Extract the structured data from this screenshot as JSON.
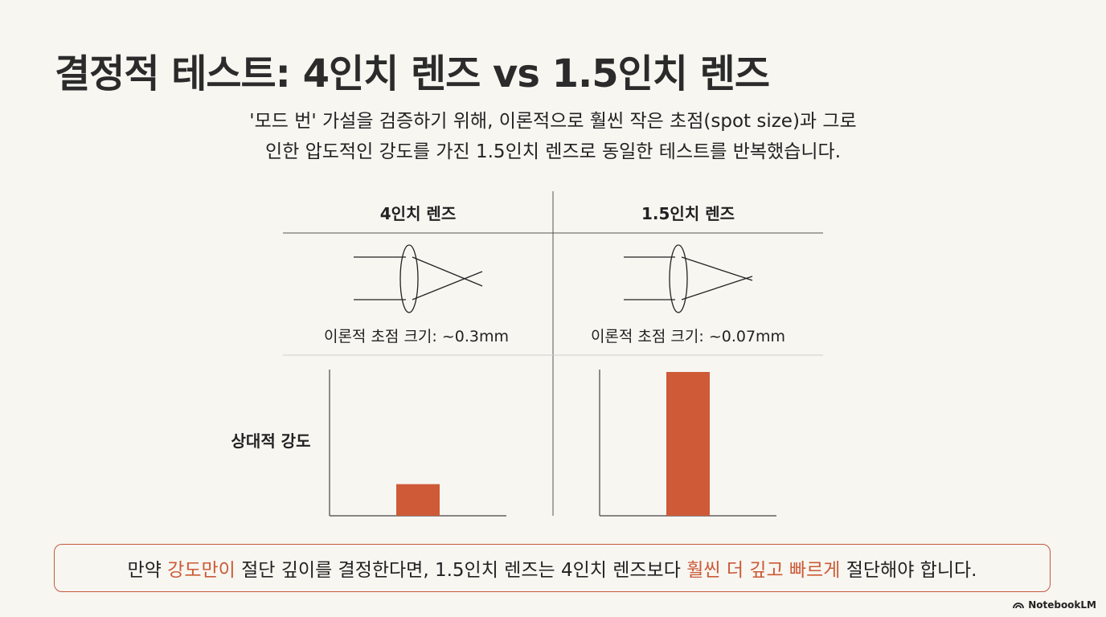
{
  "title": "결정적 테스트: 4인치 렌즈 vs 1.5인치 렌즈",
  "subtitle": {
    "line1": "'모드 번' 가설을 검증하기 위해, 이론적으로 훨씬 작은 초점(spot size)과 그로",
    "line2": "인한 압도적인 강도를 가진 1.5인치 렌즈로 동일한 테스트를 반복했습니다."
  },
  "columns": [
    {
      "header": "4인치 렌즈",
      "spot_label": "이론적 초점 크기: ~0.3mm"
    },
    {
      "header": "1.5인치 렌즈",
      "spot_label": "이론적 초점 크기: ~0.07mm"
    }
  ],
  "chart_data": {
    "type": "bar",
    "categories": [
      "4인치 렌즈",
      "1.5인치 렌즈"
    ],
    "ylabel": "상대적 강도",
    "values": [
      0.22,
      1.0
    ],
    "ylim": [
      0,
      1.0
    ],
    "grid": false,
    "bar_color": "#cf5a37"
  },
  "callout": {
    "pre": "만약 ",
    "hl1": "강도만이",
    "mid": " 절단 깊이를 결정한다면, 1.5인치 렌즈는 4인치 렌즈보다 ",
    "hl2": "훨씬 더 깊고 빠르게",
    "post": " 절단해야 합니다."
  },
  "brand": "NotebookLM",
  "colors": {
    "accent": "#cb5a37",
    "background": "#f7f6f1"
  }
}
